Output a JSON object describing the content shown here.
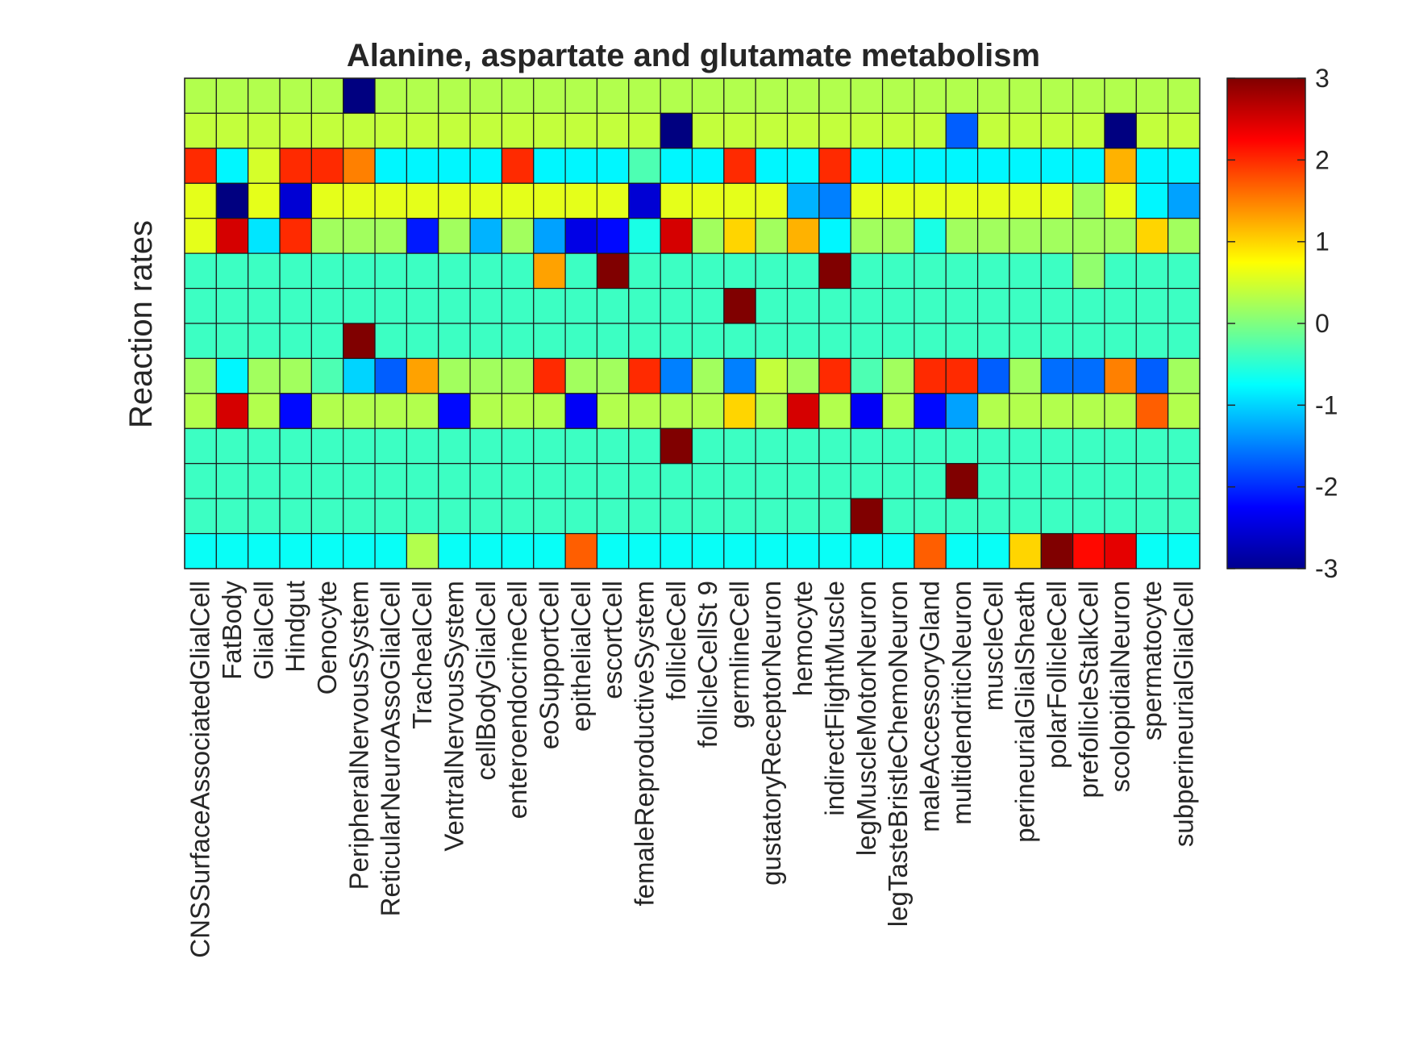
{
  "chart_data": {
    "type": "heatmap",
    "title": "Alanine, aspartate and glutamate metabolism",
    "ylabel": "Reaction rates",
    "xlabel": "",
    "colormap": "jet",
    "clim": [
      -3,
      3
    ],
    "colorbar_ticks": [
      "3",
      "2",
      "1",
      "0",
      "-1",
      "-2",
      "-3"
    ],
    "colorbar_tick_values": [
      3,
      2,
      1,
      0,
      -1,
      -2,
      -3
    ],
    "colorbar_position": "right",
    "grid": true,
    "categories": [
      "CNSSurfaceAssociatedGlialCell",
      "FatBody",
      "GlialCell",
      "Hindgut",
      "Oenocyte",
      "PeripheralNervousSystem",
      "ReticularNeuroAssoGlialCell",
      "TrachealCell",
      "VentralNervousSystem",
      "cellBodyGlialCell",
      "enteroendocrineCell",
      "eoSupportCell",
      "epithelialCell",
      "escortCell",
      "femaleReproductiveSystem",
      "follicleCell",
      "follicleCellSt 9",
      "germlineCell",
      "gustatoryReceptorNeuron",
      "hemocyte",
      "indirectFlightMuscle",
      "legMuscleMotorNeuron",
      "legTasteBristleChemoNeuron",
      "maleAccessoryGland",
      "multidendriticNeuron",
      "muscleCell",
      "perineurialGlialSheath",
      "polarFollicleCell",
      "prefollicleStalkCell",
      "scolopidialNeuron",
      "spermatocyte",
      "subperineurialGlialCell"
    ],
    "values": [
      [
        0.3,
        0.3,
        0.3,
        0.3,
        0.3,
        -3,
        0.3,
        0.3,
        0.3,
        0.3,
        0.3,
        0.3,
        0.3,
        0.3,
        0.3,
        0.3,
        0.3,
        0.3,
        0.3,
        0.3,
        0.3,
        0.3,
        0.3,
        0.3,
        0.3,
        0.3,
        0.3,
        0.3,
        0.3,
        0.3,
        0.3,
        0.3
      ],
      [
        0.4,
        0.4,
        0.4,
        0.4,
        0.4,
        0.4,
        0.4,
        0.4,
        0.4,
        0.4,
        0.4,
        0.4,
        0.4,
        0.4,
        0.4,
        -3,
        0.4,
        0.4,
        0.4,
        0.4,
        0.4,
        0.4,
        0.4,
        0.4,
        -1.7,
        0.4,
        0.4,
        0.4,
        0.4,
        -3,
        0.4,
        0.4
      ],
      [
        2,
        -0.8,
        0.5,
        2,
        2,
        1.5,
        -0.8,
        -0.8,
        -0.8,
        -0.8,
        2,
        -0.8,
        -0.8,
        -0.8,
        -0.3,
        -0.8,
        -0.8,
        2,
        -0.8,
        -0.8,
        2,
        -0.8,
        -0.8,
        -0.8,
        -0.8,
        -0.8,
        -0.8,
        -0.8,
        -0.8,
        1.2,
        -0.8,
        -0.8
      ],
      [
        0.6,
        -3,
        0.6,
        -2.5,
        0.6,
        0.6,
        0.6,
        0.6,
        0.6,
        0.6,
        0.6,
        0.6,
        0.6,
        0.6,
        -2.5,
        0.6,
        0.6,
        0.6,
        0.6,
        -1.2,
        -1.5,
        0.6,
        0.6,
        0.6,
        0.6,
        0.6,
        0.6,
        0.6,
        0.2,
        0.6,
        -0.8,
        -1.3
      ],
      [
        0.6,
        2.5,
        -0.9,
        2,
        0.2,
        0.2,
        0.2,
        -2.1,
        0.2,
        -1.2,
        0.2,
        -1.3,
        -2.4,
        -2.2,
        -0.6,
        2.5,
        0.2,
        1,
        0.2,
        1.2,
        -0.8,
        0.2,
        0.2,
        -0.6,
        0.2,
        0.2,
        0.2,
        0.2,
        0.2,
        0.2,
        1,
        0.2
      ],
      [
        -0.4,
        -0.4,
        -0.4,
        -0.4,
        -0.4,
        -0.4,
        -0.4,
        -0.4,
        -0.4,
        -0.4,
        -0.4,
        1.3,
        -0.4,
        3,
        -0.4,
        -0.4,
        -0.4,
        -0.4,
        -0.4,
        -0.4,
        3,
        -0.4,
        -0.4,
        -0.4,
        -0.4,
        -0.4,
        -0.4,
        -0.4,
        0.1,
        -0.4,
        -0.4,
        -0.4
      ],
      [
        -0.4,
        -0.4,
        -0.4,
        -0.4,
        -0.4,
        -0.4,
        -0.4,
        -0.4,
        -0.4,
        -0.4,
        -0.4,
        -0.4,
        -0.4,
        -0.4,
        -0.4,
        -0.4,
        -0.4,
        3,
        -0.4,
        -0.4,
        -0.4,
        -0.4,
        -0.4,
        -0.4,
        -0.4,
        -0.4,
        -0.4,
        -0.4,
        -0.4,
        -0.4,
        -0.4,
        -0.4
      ],
      [
        -0.4,
        -0.4,
        -0.4,
        -0.4,
        -0.4,
        3,
        -0.4,
        -0.4,
        -0.4,
        -0.4,
        -0.4,
        -0.4,
        -0.4,
        -0.4,
        -0.4,
        -0.4,
        -0.4,
        -0.4,
        -0.4,
        -0.4,
        -0.4,
        -0.4,
        -0.4,
        -0.4,
        -0.4,
        -0.4,
        -0.4,
        -0.4,
        -0.4,
        -0.4,
        -0.4,
        -0.4
      ],
      [
        0.2,
        -0.8,
        0.2,
        0.2,
        -0.3,
        -1,
        -1.7,
        1.3,
        0.2,
        0.2,
        0.2,
        2,
        0.2,
        0.2,
        2,
        -1.5,
        0.2,
        -1.5,
        0.4,
        0.2,
        2,
        -0.3,
        0.2,
        2,
        2,
        -1.7,
        0.2,
        -1.6,
        -1.6,
        1.5,
        -1.7,
        0.2
      ],
      [
        0.3,
        2.5,
        0.3,
        -2.2,
        0.3,
        0.3,
        0.3,
        0.3,
        -2.2,
        0.3,
        0.3,
        0.3,
        -2.3,
        0.3,
        0.3,
        0.3,
        0.3,
        1,
        0.3,
        2.5,
        0.3,
        -2.3,
        0.3,
        -2.2,
        -1.3,
        0.3,
        0.3,
        0.3,
        0.3,
        0.3,
        1.7,
        0.3
      ],
      [
        -0.4,
        -0.4,
        -0.4,
        -0.4,
        -0.4,
        -0.4,
        -0.4,
        -0.4,
        -0.4,
        -0.4,
        -0.4,
        -0.4,
        -0.4,
        -0.4,
        -0.4,
        3,
        -0.4,
        -0.4,
        -0.4,
        -0.4,
        -0.4,
        -0.4,
        -0.4,
        -0.4,
        -0.4,
        -0.4,
        -0.4,
        -0.4,
        -0.4,
        -0.4,
        -0.4,
        -0.4
      ],
      [
        -0.4,
        -0.4,
        -0.4,
        -0.4,
        -0.4,
        -0.4,
        -0.4,
        -0.4,
        -0.4,
        -0.4,
        -0.4,
        -0.4,
        -0.4,
        -0.4,
        -0.4,
        -0.4,
        -0.4,
        -0.4,
        -0.4,
        -0.4,
        -0.4,
        -0.4,
        -0.4,
        -0.4,
        3,
        -0.4,
        -0.4,
        -0.4,
        -0.4,
        -0.4,
        -0.4,
        -0.4
      ],
      [
        -0.4,
        -0.4,
        -0.4,
        -0.4,
        -0.4,
        -0.4,
        -0.4,
        -0.4,
        -0.4,
        -0.4,
        -0.4,
        -0.4,
        -0.4,
        -0.4,
        -0.4,
        -0.4,
        -0.4,
        -0.4,
        -0.4,
        -0.4,
        -0.4,
        3,
        -0.4,
        -0.4,
        -0.4,
        -0.4,
        -0.4,
        -0.4,
        -0.4,
        -0.4,
        -0.4,
        -0.4
      ],
      [
        -0.7,
        -0.7,
        -0.7,
        -0.7,
        -0.7,
        -0.7,
        -0.7,
        0.3,
        -0.7,
        -0.7,
        -0.7,
        -0.7,
        1.7,
        -0.7,
        -0.7,
        -0.7,
        -0.7,
        -0.7,
        -0.7,
        -0.7,
        -0.7,
        -0.7,
        -0.7,
        1.7,
        -0.7,
        -0.7,
        1,
        3,
        2.2,
        2.4,
        -0.7,
        -0.7
      ]
    ]
  }
}
